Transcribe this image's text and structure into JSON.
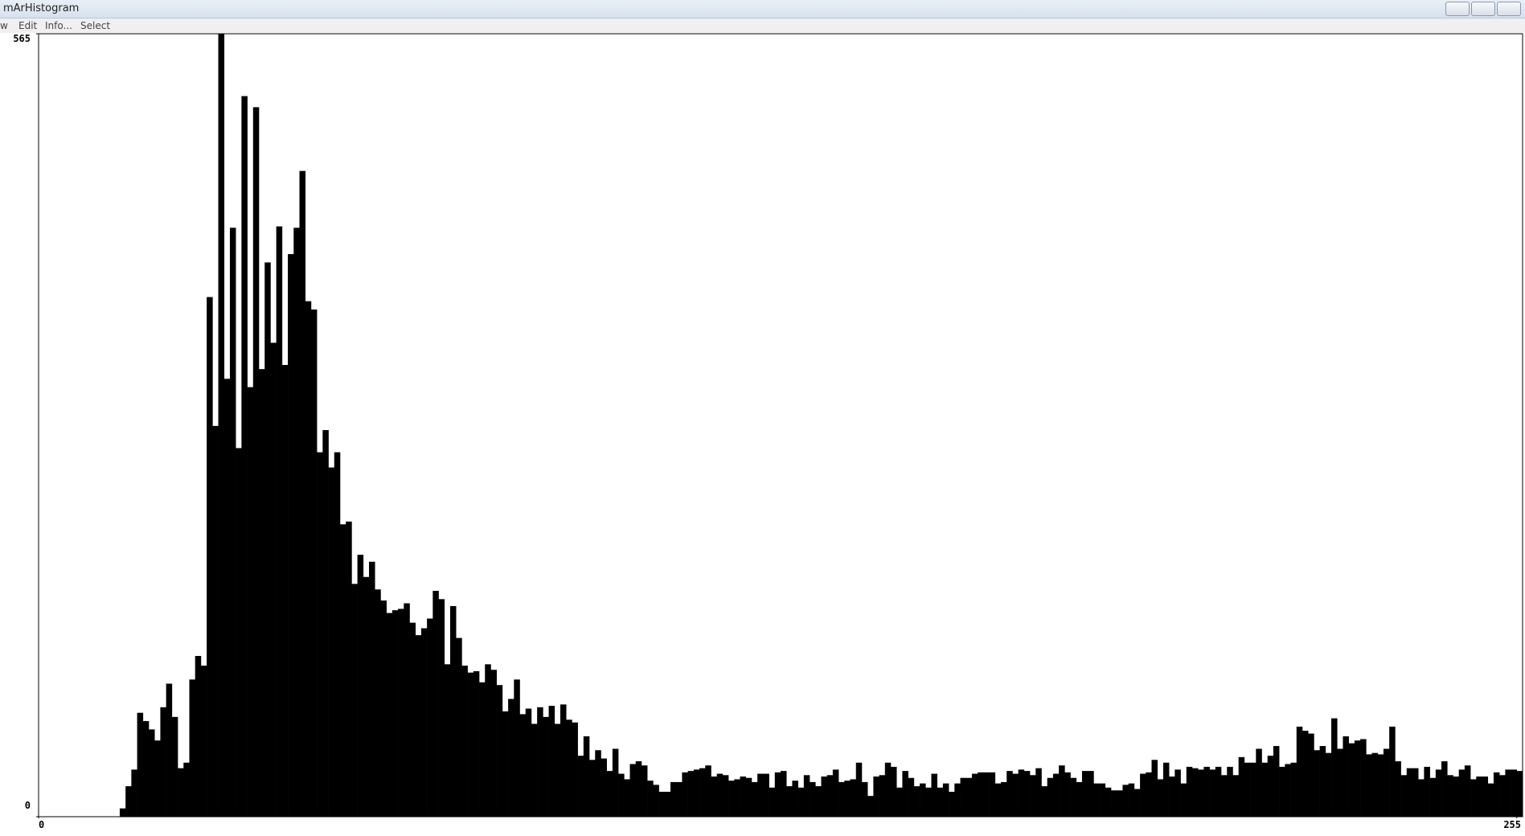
{
  "window": {
    "title": "mArHistogram",
    "menu": [
      "w",
      "Edit",
      "Info...",
      "Select"
    ]
  },
  "chart_data": {
    "type": "bar",
    "color": "#000000",
    "x": [
      0,
      1,
      2,
      3,
      4,
      5,
      6,
      7,
      8,
      9,
      10,
      11,
      12,
      13,
      14,
      15,
      16,
      17,
      18,
      19,
      20,
      21,
      22,
      23,
      24,
      25,
      26,
      27,
      28,
      29,
      30,
      31,
      32,
      33,
      34,
      35,
      36,
      37,
      38,
      39,
      40,
      41,
      42,
      43,
      44,
      45,
      46,
      47,
      48,
      49,
      50,
      51,
      52,
      53,
      54,
      55,
      56,
      57,
      58,
      59,
      60,
      61,
      62,
      63,
      64,
      65,
      66,
      67,
      68,
      69,
      70,
      71,
      72,
      73,
      74,
      75,
      76,
      77,
      78,
      79,
      80,
      81,
      82,
      83,
      84,
      85,
      86,
      87,
      88,
      89,
      90,
      91,
      92,
      93,
      94,
      95,
      96,
      97,
      98,
      99,
      100,
      101,
      102,
      103,
      104,
      105,
      106,
      107,
      108,
      109,
      110,
      111,
      112,
      113,
      114,
      115,
      116,
      117,
      118,
      119,
      120,
      121,
      122,
      123,
      124,
      125,
      126,
      127,
      128,
      129,
      130,
      131,
      132,
      133,
      134,
      135,
      136,
      137,
      138,
      139,
      140,
      141,
      142,
      143,
      144,
      145,
      146,
      147,
      148,
      149,
      150,
      151,
      152,
      153,
      154,
      155,
      156,
      157,
      158,
      159,
      160,
      161,
      162,
      163,
      164,
      165,
      166,
      167,
      168,
      169,
      170,
      171,
      172,
      173,
      174,
      175,
      176,
      177,
      178,
      179,
      180,
      181,
      182,
      183,
      184,
      185,
      186,
      187,
      188,
      189,
      190,
      191,
      192,
      193,
      194,
      195,
      196,
      197,
      198,
      199,
      200,
      201,
      202,
      203,
      204,
      205,
      206,
      207,
      208,
      209,
      210,
      211,
      212,
      213,
      214,
      215,
      216,
      217,
      218,
      219,
      220,
      221,
      222,
      223,
      224,
      225,
      226,
      227,
      228,
      229,
      230,
      231,
      232,
      233,
      234,
      235,
      236,
      237,
      238,
      239,
      240,
      241,
      242,
      243,
      244,
      245,
      246,
      247,
      248,
      249,
      250,
      251,
      252,
      253,
      254,
      255
    ],
    "values": [
      0,
      0,
      0,
      0,
      0,
      0,
      0,
      0,
      0,
      0,
      0,
      0,
      0,
      0,
      6,
      22,
      34,
      75,
      69,
      63,
      55,
      79,
      96,
      72,
      35,
      39,
      99,
      116,
      109,
      375,
      282,
      565,
      316,
      425,
      266,
      520,
      310,
      512,
      323,
      400,
      342,
      426,
      326,
      406,
      425,
      466,
      372,
      366,
      263,
      279,
      252,
      263,
      211,
      213,
      168,
      189,
      173,
      184,
      164,
      156,
      147,
      149,
      150,
      154,
      140,
      131,
      136,
      143,
      163,
      157,
      110,
      152,
      129,
      109,
      104,
      105,
      97,
      110,
      106,
      95,
      76,
      85,
      99,
      74,
      78,
      67,
      79,
      72,
      80,
      67,
      81,
      70,
      68,
      44,
      58,
      41,
      48,
      42,
      33,
      49,
      31,
      27,
      38,
      40,
      37,
      26,
      23,
      18,
      18,
      25,
      25,
      32,
      33,
      34,
      35,
      37,
      29,
      31,
      30,
      26,
      27,
      29,
      28,
      25,
      31,
      31,
      21,
      32,
      33,
      22,
      26,
      21,
      30,
      25,
      22,
      29,
      30,
      34,
      25,
      26,
      27,
      39,
      25,
      15,
      29,
      30,
      39,
      36,
      21,
      33,
      28,
      22,
      24,
      21,
      31,
      21,
      24,
      18,
      24,
      28,
      28,
      31,
      32,
      32,
      32,
      24,
      25,
      33,
      31,
      34,
      33,
      30,
      35,
      22,
      28,
      31,
      37,
      32,
      28,
      25,
      33,
      33,
      24,
      24,
      21,
      19,
      19,
      23,
      24,
      20,
      31,
      32,
      41,
      27,
      39,
      29,
      34,
      24,
      36,
      35,
      34,
      36,
      34,
      36,
      30,
      36,
      30,
      43,
      39,
      39,
      49,
      39,
      44,
      51,
      36,
      38,
      39,
      65,
      62,
      60,
      48,
      51,
      46,
      71,
      49,
      58,
      53,
      55,
      56,
      45,
      46,
      45,
      49,
      65,
      40,
      30,
      35,
      35,
      27,
      36,
      28,
      34,
      40,
      30,
      29,
      34,
      37,
      27,
      29,
      29,
      24,
      32,
      30,
      34,
      34,
      33
    ],
    "xlim": [
      0,
      255
    ],
    "xticks": [
      0,
      255
    ],
    "ylim": [
      0,
      565
    ],
    "yticks": [
      0,
      565
    ]
  }
}
